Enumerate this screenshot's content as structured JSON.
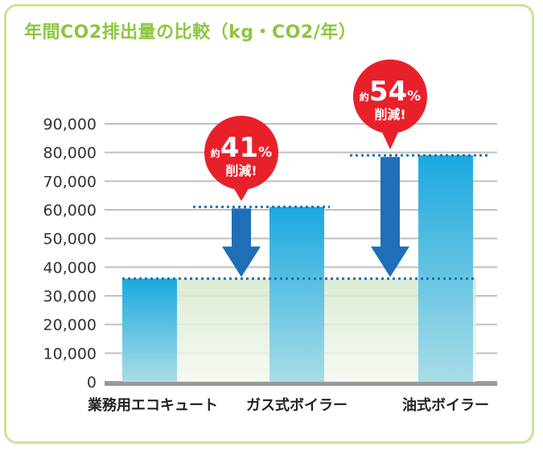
{
  "title": "年間CO2排出量の比較（kg・CO2/年）",
  "chart_data": {
    "type": "bar",
    "title": "年間CO2排出量の比較（kg・CO2/年）",
    "categories": [
      "業務用エコキュート",
      "ガス式ボイラー",
      "油式ボイラー"
    ],
    "values": [
      36000,
      61000,
      79000
    ],
    "ylim": [
      0,
      90000
    ],
    "yticks": [
      "0",
      "10,000",
      "20,000",
      "30,000",
      "40,000",
      "50,000",
      "60,000",
      "70,000",
      "80,000",
      "90,000"
    ],
    "grid": true,
    "annotations": [
      {
        "prefix": "約",
        "number": "41",
        "unit": "%",
        "text": "削減!",
        "target": "ガス式ボイラー"
      },
      {
        "prefix": "約",
        "number": "54",
        "unit": "%",
        "text": "削減!",
        "target": "油式ボイラー"
      }
    ],
    "colors": {
      "bar_top": "#1ba8e0",
      "bar_bottom": "#a9dde6",
      "arrow": "#1e6fb8",
      "badge": "#e8202a",
      "dotted": "#1e6fb8",
      "grid": "#bfbfbf",
      "baseline": "#999999",
      "band": "#dcebd2"
    }
  }
}
